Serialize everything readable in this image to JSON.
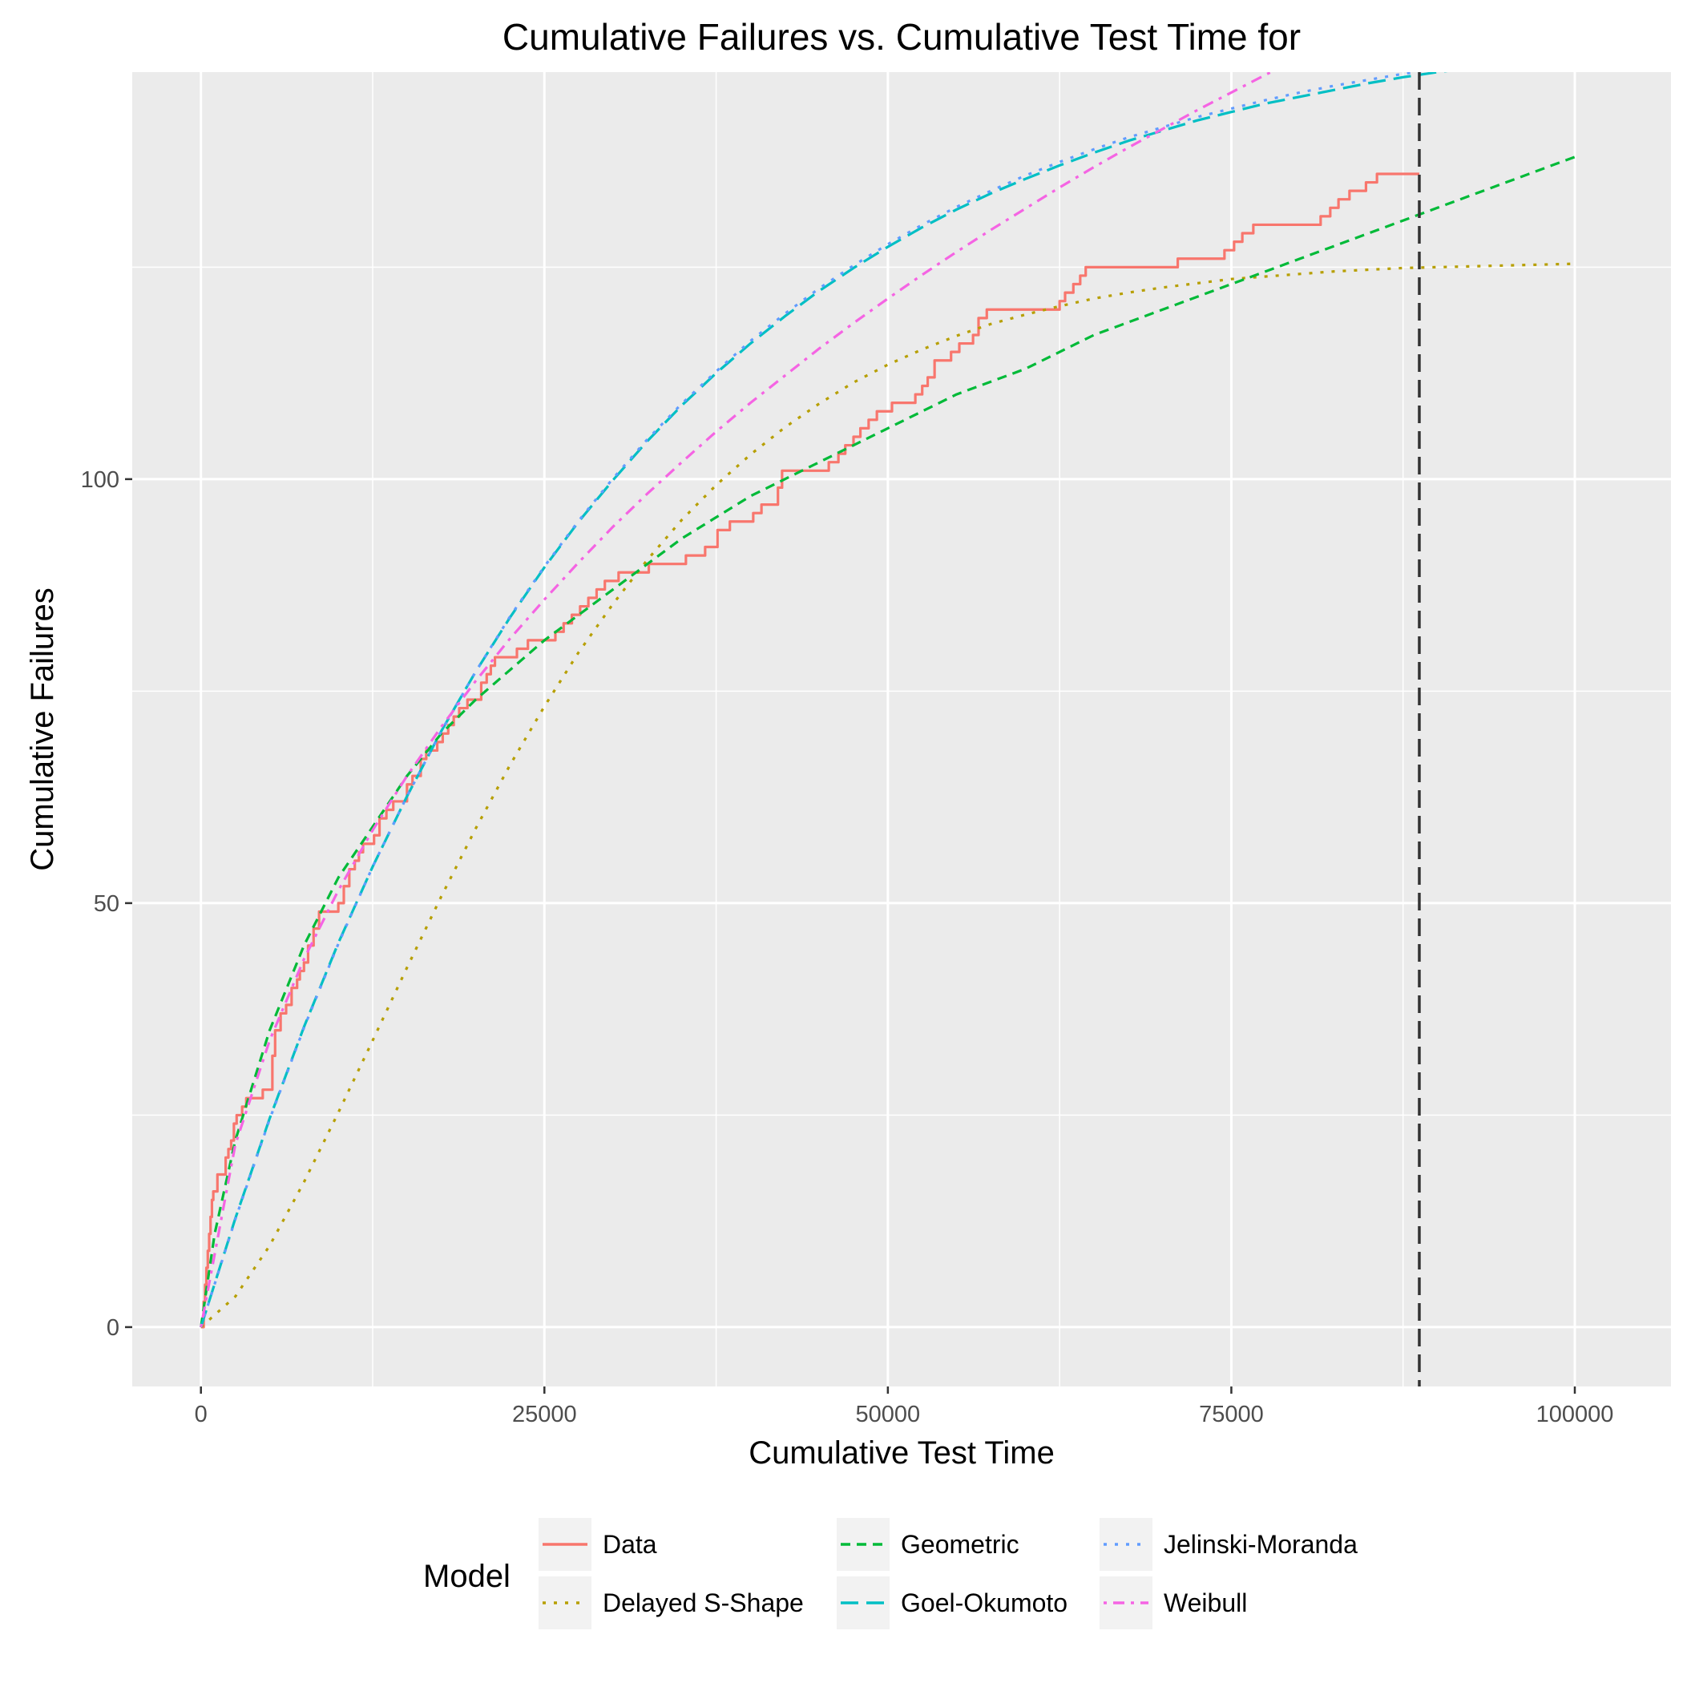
{
  "chart_data": {
    "type": "line",
    "title": "Cumulative Failures vs. Cumulative Test Time for",
    "xlabel": "Cumulative Test Time",
    "ylabel": "Cumulative Failures",
    "xlim": [
      -5000,
      107000
    ],
    "ylim": [
      -7,
      148
    ],
    "xticks": [
      0,
      25000,
      50000,
      75000,
      100000
    ],
    "xtick_labels": [
      "0",
      "25000",
      "50000",
      "75000",
      "100000"
    ],
    "yticks": [
      0,
      50,
      100
    ],
    "ytick_labels": [
      "0",
      "50",
      "100"
    ],
    "grid": true,
    "vline": {
      "x": 88682,
      "style": "dashed",
      "color": "#333333"
    },
    "legend": {
      "title": "Model",
      "position": "bottom",
      "entries": [
        {
          "label": "Data",
          "color": "#F8766D",
          "dash": "solid"
        },
        {
          "label": "Delayed S-Shape",
          "color": "#B79F00",
          "dash": "dotted"
        },
        {
          "label": "Geometric",
          "color": "#00BA38",
          "dash": "dashed"
        },
        {
          "label": "Goel-Okumoto",
          "color": "#00BFC4",
          "dash": "longdash"
        },
        {
          "label": "Jelinski-Moranda",
          "color": "#619CFF",
          "dash": "dotted"
        },
        {
          "label": "Weibull",
          "color": "#F564E3",
          "dash": "dotdash"
        }
      ]
    },
    "series": [
      {
        "name": "Data",
        "color": "#F8766D",
        "dash": "solid",
        "step": true,
        "x": [
          0,
          200,
          300,
          400,
          500,
          600,
          700,
          800,
          900,
          1000,
          1200,
          1800,
          2000,
          2200,
          2400,
          2600,
          3000,
          3300,
          4500,
          5200,
          5400,
          5800,
          6200,
          6600,
          7000,
          7200,
          7500,
          7800,
          8200,
          8600,
          10000,
          10400,
          10800,
          11200,
          11500,
          11800,
          12600,
          13000,
          13500,
          14000,
          15000,
          15400,
          16000,
          16400,
          17200,
          17600,
          18000,
          18400,
          18800,
          19400,
          20400,
          20800,
          21100,
          21400,
          23000,
          23800,
          25800,
          26400,
          27000,
          27600,
          28200,
          28800,
          29400,
          30400,
          32600,
          35300,
          36700,
          37600,
          38500,
          40200,
          40800,
          42000,
          42300,
          45700,
          46400,
          46900,
          47500,
          48000,
          48600,
          49200,
          50300,
          52000,
          52500,
          52900,
          53400,
          54600,
          55200,
          56200,
          56600,
          57200,
          62500,
          62900,
          63500,
          64000,
          64400,
          71100,
          74500,
          75200,
          75800,
          76600,
          81500,
          82200,
          82800,
          83600,
          84800,
          85600,
          88682
        ],
        "y": [
          0,
          3,
          5,
          7,
          9,
          11,
          13,
          15,
          16,
          16,
          18,
          20,
          21,
          22,
          24,
          25,
          26,
          27,
          28,
          32,
          35,
          37,
          38,
          40,
          41,
          42,
          43,
          45,
          47,
          49,
          50,
          52,
          54,
          55,
          56,
          57,
          58,
          60,
          61,
          62,
          64,
          65,
          67,
          68,
          69,
          70,
          71,
          72,
          73,
          74,
          76,
          77,
          78,
          79,
          80,
          81,
          82,
          83,
          84,
          85,
          86,
          87,
          88,
          89,
          90,
          91,
          92,
          94,
          95,
          96,
          97,
          99,
          101,
          102,
          103,
          104,
          105,
          106,
          107,
          108,
          109,
          110,
          111,
          112,
          114,
          115,
          116,
          117,
          119,
          120,
          121,
          122,
          123,
          124,
          125,
          126,
          127,
          128,
          129,
          130,
          131,
          132,
          133,
          134,
          135,
          136,
          136
        ]
      },
      {
        "name": "Delayed S-Shape",
        "color": "#B79F00",
        "dash": "dotted",
        "step": false,
        "x": [
          0,
          2500,
          5000,
          7500,
          10000,
          12500,
          15000,
          17500,
          20000,
          22500,
          25000,
          27500,
          30000,
          32500,
          35000,
          37500,
          40000,
          42500,
          45000,
          47500,
          50000,
          52500,
          55000,
          57500,
          60000,
          62500,
          65000,
          67500,
          70000,
          72500,
          75000,
          77500,
          80000,
          82500,
          85000,
          87500,
          90000,
          92500,
          95000,
          97500,
          100000
        ],
        "y": [
          0,
          3.6,
          9.6,
          17.1,
          25.3,
          33.8,
          42.4,
          50.8,
          58.8,
          66.3,
          73.2,
          79.6,
          85.3,
          90.5,
          95.2,
          99.3,
          102.9,
          106.1,
          108.9,
          111.4,
          113.5,
          115.3,
          116.9,
          118.3,
          119.4,
          120.4,
          121.3,
          122.0,
          122.6,
          123.1,
          123.6,
          123.9,
          124.2,
          124.5,
          124.7,
          124.9,
          125.0,
          125.1,
          125.2,
          125.3,
          125.4
        ]
      },
      {
        "name": "Geometric",
        "color": "#00BA38",
        "dash": "dashed",
        "step": false,
        "x": [
          0,
          1000,
          2500,
          5000,
          7500,
          10000,
          12500,
          15000,
          17500,
          20000,
          25000,
          30000,
          35000,
          40000,
          45000,
          50000,
          55000,
          60000,
          65000,
          70000,
          75000,
          80000,
          85000,
          90000,
          95000,
          100000
        ],
        "y": [
          0,
          11,
          22,
          35,
          45,
          53,
          59,
          65,
          70,
          74,
          81,
          87,
          93,
          98,
          102,
          106,
          110,
          113,
          117,
          120,
          123,
          126,
          129,
          132,
          135,
          138
        ]
      },
      {
        "name": "Goel-Okumoto",
        "color": "#00BFC4",
        "dash": "longdash",
        "step": false,
        "x": [
          0,
          2500,
          5000,
          7500,
          10000,
          12500,
          15000,
          17500,
          20000,
          22500,
          25000,
          27500,
          30000,
          32500,
          35000,
          37500,
          40000,
          42500,
          45000,
          47500,
          50000,
          52500,
          55000,
          57500,
          60000,
          62500,
          65000,
          67500,
          70000,
          72500,
          75000,
          77500,
          80000,
          82500,
          85000,
          87500,
          90000,
          92500,
          95000,
          97500,
          100000,
          102000
        ],
        "y": [
          0,
          12.8,
          24.6,
          35.4,
          45.3,
          54.3,
          62.6,
          70.3,
          77.3,
          83.7,
          89.6,
          95.0,
          99.9,
          104.5,
          108.7,
          112.5,
          116.0,
          119.2,
          122.2,
          124.9,
          127.4,
          129.7,
          131.8,
          133.7,
          135.4,
          137.0,
          138.5,
          139.9,
          141.1,
          142.3,
          143.3,
          144.3,
          145.1,
          145.9,
          146.7,
          147.4,
          148.0,
          148.5,
          149.1,
          149.5,
          150.0,
          150.3
        ]
      },
      {
        "name": "Jelinski-Moranda",
        "color": "#619CFF",
        "dash": "dotted",
        "step": false,
        "x": [
          0,
          2500,
          5000,
          7500,
          10000,
          12500,
          15000,
          17500,
          20000,
          22500,
          25000,
          27500,
          30000,
          32500,
          35000,
          37500,
          40000,
          42500,
          45000,
          47500,
          50000,
          52500,
          55000,
          57500,
          60000,
          62500,
          65000,
          67500,
          70000,
          72500,
          75000,
          77500,
          80000,
          82500,
          85000,
          87500,
          90000,
          92500,
          95000,
          97500,
          100000
        ],
        "y": [
          0,
          12.7,
          24.5,
          35.3,
          45.2,
          54.3,
          62.6,
          70.3,
          77.3,
          83.8,
          89.7,
          95.1,
          100.1,
          104.7,
          108.9,
          112.7,
          116.3,
          119.5,
          122.5,
          125.2,
          127.7,
          130.0,
          132.1,
          134.0,
          135.8,
          137.4,
          138.9,
          140.3,
          141.5,
          142.7,
          143.7,
          144.7,
          145.6,
          146.4,
          147.1,
          147.8,
          148.4,
          149.0,
          149.5,
          150.0,
          150.4
        ]
      },
      {
        "name": "Weibull",
        "color": "#F564E3",
        "dash": "dotdash",
        "step": false,
        "x": [
          0,
          2500,
          5000,
          7500,
          10000,
          12500,
          15000,
          17500,
          20000,
          22500,
          25000,
          27500,
          30000,
          32500,
          35000,
          37500,
          40000,
          42500,
          45000,
          47500,
          50000,
          52500,
          55000,
          57500,
          60000,
          62500,
          65000,
          67500,
          70000,
          72500,
          75000,
          77500,
          80000,
          82500,
          85000,
          87500,
          90000,
          92500,
          95000,
          97500
        ],
        "y": [
          0,
          21.5,
          33.8,
          43.4,
          51.5,
          58.6,
          65.0,
          70.8,
          76.2,
          81.2,
          85.8,
          90.2,
          94.4,
          98.3,
          102.0,
          105.6,
          109.0,
          112.2,
          115.4,
          118.4,
          121.3,
          124.1,
          126.8,
          129.4,
          131.9,
          134.4,
          136.8,
          139.1,
          141.3,
          143.5,
          145.6,
          147.7,
          149.7,
          151.6,
          153.5,
          155.4,
          157.2,
          159.0,
          160.7,
          162.4
        ]
      }
    ]
  }
}
